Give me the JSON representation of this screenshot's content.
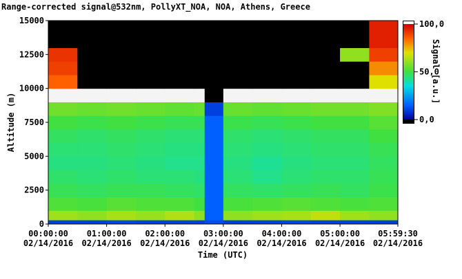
{
  "chart_data": {
    "type": "heatmap",
    "title": "Range-corrected signal@532nm, PollyXT_NOA, NOA, Athens, Greece",
    "x_label": "Time (UTC)",
    "y_label": "Altitude (m)",
    "colorbar_label": "Signal [a.u.]",
    "x_tick_date": "02/14/2016",
    "xlim": [
      0,
      5.9917
    ],
    "ylim": [
      0,
      15000
    ],
    "clim": [
      0,
      100
    ],
    "xticks": [
      {
        "value": 0,
        "label": "00:00:00"
      },
      {
        "value": 1,
        "label": "01:00:00"
      },
      {
        "value": 2,
        "label": "02:00:00"
      },
      {
        "value": 3,
        "label": "03:00:00"
      },
      {
        "value": 4,
        "label": "04:00:00"
      },
      {
        "value": 5,
        "label": "05:00:00"
      },
      {
        "value": 5.9917,
        "label": "05:59:30"
      }
    ],
    "yticks": [
      0,
      2500,
      5000,
      7500,
      10000,
      12500,
      15000
    ],
    "cticks": [
      {
        "value": 0,
        "label": "0,0"
      },
      {
        "value": 50,
        "label": "50,0"
      },
      {
        "value": 100,
        "label": "100,0"
      }
    ],
    "x_edges": [
      0,
      0.5,
      1,
      1.5,
      2,
      2.5,
      2.68,
      3,
      3.5,
      4,
      4.5,
      5,
      5.5,
      5.9917
    ],
    "y_edges": [
      0,
      300,
      1000,
      2000,
      3000,
      4000,
      5000,
      6000,
      7000,
      8000,
      9000,
      10000,
      11000,
      12000,
      13000,
      15000
    ],
    "z": [
      [
        10,
        10,
        11,
        10,
        10,
        10,
        12,
        10,
        10,
        11,
        10,
        10,
        10
      ],
      [
        62,
        60,
        63,
        61,
        64,
        60,
        15,
        60,
        62,
        63,
        66,
        62,
        60
      ],
      [
        52,
        51,
        53,
        52,
        52,
        50,
        15,
        51,
        52,
        53,
        52,
        51,
        52
      ],
      [
        48,
        47,
        48,
        48,
        47,
        46,
        15,
        47,
        46,
        47,
        48,
        47,
        49
      ],
      [
        46,
        45,
        46,
        45,
        45,
        44,
        15,
        45,
        43,
        45,
        46,
        46,
        48
      ],
      [
        44,
        44,
        45,
        44,
        43,
        43,
        15,
        44,
        42,
        44,
        45,
        45,
        47
      ],
      [
        45,
        45,
        46,
        45,
        44,
        44,
        15,
        45,
        44,
        45,
        46,
        46,
        48
      ],
      [
        47,
        46,
        47,
        46,
        45,
        45,
        15,
        46,
        45,
        46,
        47,
        47,
        50
      ],
      [
        50,
        49,
        50,
        49,
        48,
        48,
        15,
        49,
        48,
        49,
        50,
        50,
        53
      ],
      [
        56,
        55,
        56,
        55,
        54,
        55,
        10,
        55,
        54,
        55,
        56,
        56,
        58
      ],
      [
        120,
        120,
        120,
        120,
        120,
        120,
        -5,
        120,
        120,
        120,
        120,
        120,
        120
      ],
      [
        85,
        -5,
        -5,
        -5,
        -5,
        -5,
        -5,
        -5,
        -5,
        -5,
        -5,
        -5,
        70
      ],
      [
        90,
        -5,
        -5,
        -5,
        -5,
        -5,
        -5,
        -5,
        -5,
        -5,
        -5,
        -5,
        80
      ],
      [
        92,
        -5,
        -5,
        -5,
        -5,
        -5,
        -5,
        -5,
        -5,
        -5,
        -5,
        60,
        90
      ],
      [
        -5,
        -5,
        -5,
        -5,
        -5,
        -5,
        -5,
        -5,
        -5,
        -5,
        -5,
        -5,
        95
      ]
    ]
  }
}
